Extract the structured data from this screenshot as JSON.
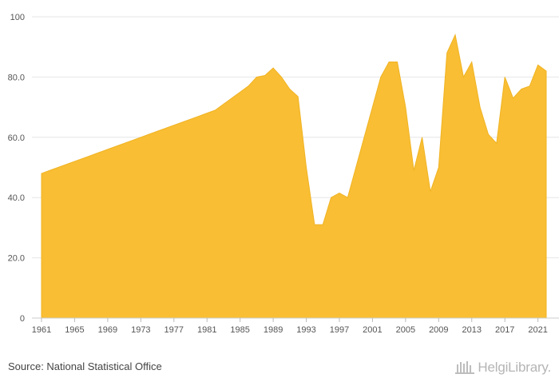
{
  "chart_data": {
    "type": "area",
    "x": [
      1961,
      1962,
      1963,
      1964,
      1965,
      1966,
      1967,
      1968,
      1969,
      1970,
      1971,
      1972,
      1973,
      1974,
      1975,
      1976,
      1977,
      1978,
      1979,
      1980,
      1981,
      1982,
      1983,
      1984,
      1985,
      1986,
      1987,
      1988,
      1989,
      1990,
      1991,
      1992,
      1993,
      1994,
      1995,
      1996,
      1997,
      1998,
      1999,
      2000,
      2001,
      2002,
      2003,
      2004,
      2005,
      2006,
      2007,
      2008,
      2009,
      2010,
      2011,
      2012,
      2013,
      2014,
      2015,
      2016,
      2017,
      2018,
      2019,
      2020,
      2021,
      2022
    ],
    "values": [
      48.0,
      49.0,
      50.0,
      51.0,
      52.0,
      53.0,
      54.0,
      55.0,
      56.0,
      57.0,
      58.0,
      59.0,
      60.0,
      61.0,
      62.0,
      63.0,
      64.0,
      65.0,
      66.0,
      67.0,
      68.0,
      69.0,
      71.0,
      73.0,
      75.0,
      77.0,
      80.0,
      80.5,
      83.0,
      80.0,
      76.0,
      73.5,
      50.0,
      31.0,
      31.0,
      40.0,
      41.5,
      40.0,
      50.0,
      60.0,
      70.0,
      80.0,
      85.0,
      85.0,
      70.0,
      49.0,
      60.0,
      42.0,
      50.0,
      88.0,
      94.0,
      80.0,
      85.0,
      70.0,
      61.0,
      58.0,
      80.0,
      73.0,
      76.0,
      77.0,
      84.0,
      82.0
    ],
    "y_axis": {
      "min": 0,
      "max": 100,
      "ticks": [
        "0",
        "20.0",
        "40.0",
        "60.0",
        "80.0",
        "100"
      ]
    },
    "x_axis": {
      "ticks": [
        "1961",
        "1965",
        "1969",
        "1973",
        "1977",
        "1981",
        "1985",
        "1989",
        "1993",
        "1997",
        "2001",
        "2005",
        "2009",
        "2013",
        "2017",
        "2021"
      ]
    },
    "grid": "horizontal",
    "fill_color": "#f9be33",
    "line_color": "#f0b323"
  },
  "footer": {
    "source": "Source: National Statistical Office",
    "logo": "HelgiLibrary."
  }
}
